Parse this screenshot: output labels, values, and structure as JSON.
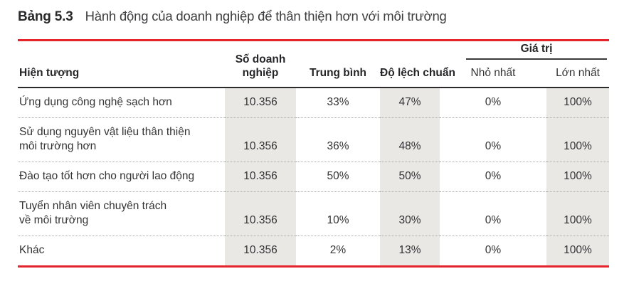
{
  "caption": {
    "number": "Bảng 5.3",
    "title": "Hành động của doanh nghiệp để thân thiện hơn với môi trường"
  },
  "table": {
    "headers": {
      "hien_tuong": "Hiện tượng",
      "so_doanh_nghiep": [
        "Số doanh",
        "nghiệp"
      ],
      "trung_binh": "Trung bình",
      "do_lech_chuan": "Độ lệch chuẩn",
      "gia_tri": "Giá trị",
      "nho_nhat": "Nhỏ nhất",
      "lon_nhat": "Lớn nhất"
    },
    "rows": [
      {
        "label": [
          "Ứng dụng công nghệ sạch hơn"
        ],
        "n": "10.356",
        "mean": "33%",
        "sd": "47%",
        "min": "0%",
        "max": "100%"
      },
      {
        "label": [
          "Sử dụng nguyên vật liệu thân thiện",
          "môi trường hơn"
        ],
        "n": "10.356",
        "mean": "36%",
        "sd": "48%",
        "min": "0%",
        "max": "100%"
      },
      {
        "label": [
          "Đào tạo tốt hơn cho người lao động"
        ],
        "n": "10.356",
        "mean": "50%",
        "sd": "50%",
        "min": "0%",
        "max": "100%"
      },
      {
        "label": [
          "Tuyển nhân viên chuyên trách",
          "về môi trường"
        ],
        "n": "10.356",
        "mean": "10%",
        "sd": "30%",
        "min": "0%",
        "max": "100%"
      },
      {
        "label": [
          "Khác"
        ],
        "n": "10.356",
        "mean": "2%",
        "sd": "13%",
        "min": "0%",
        "max": "100%"
      }
    ]
  },
  "colors": {
    "accent_red": "#e5232b",
    "band_gray": "#e9e8e5",
    "header_rule": "#2b2b2b"
  }
}
